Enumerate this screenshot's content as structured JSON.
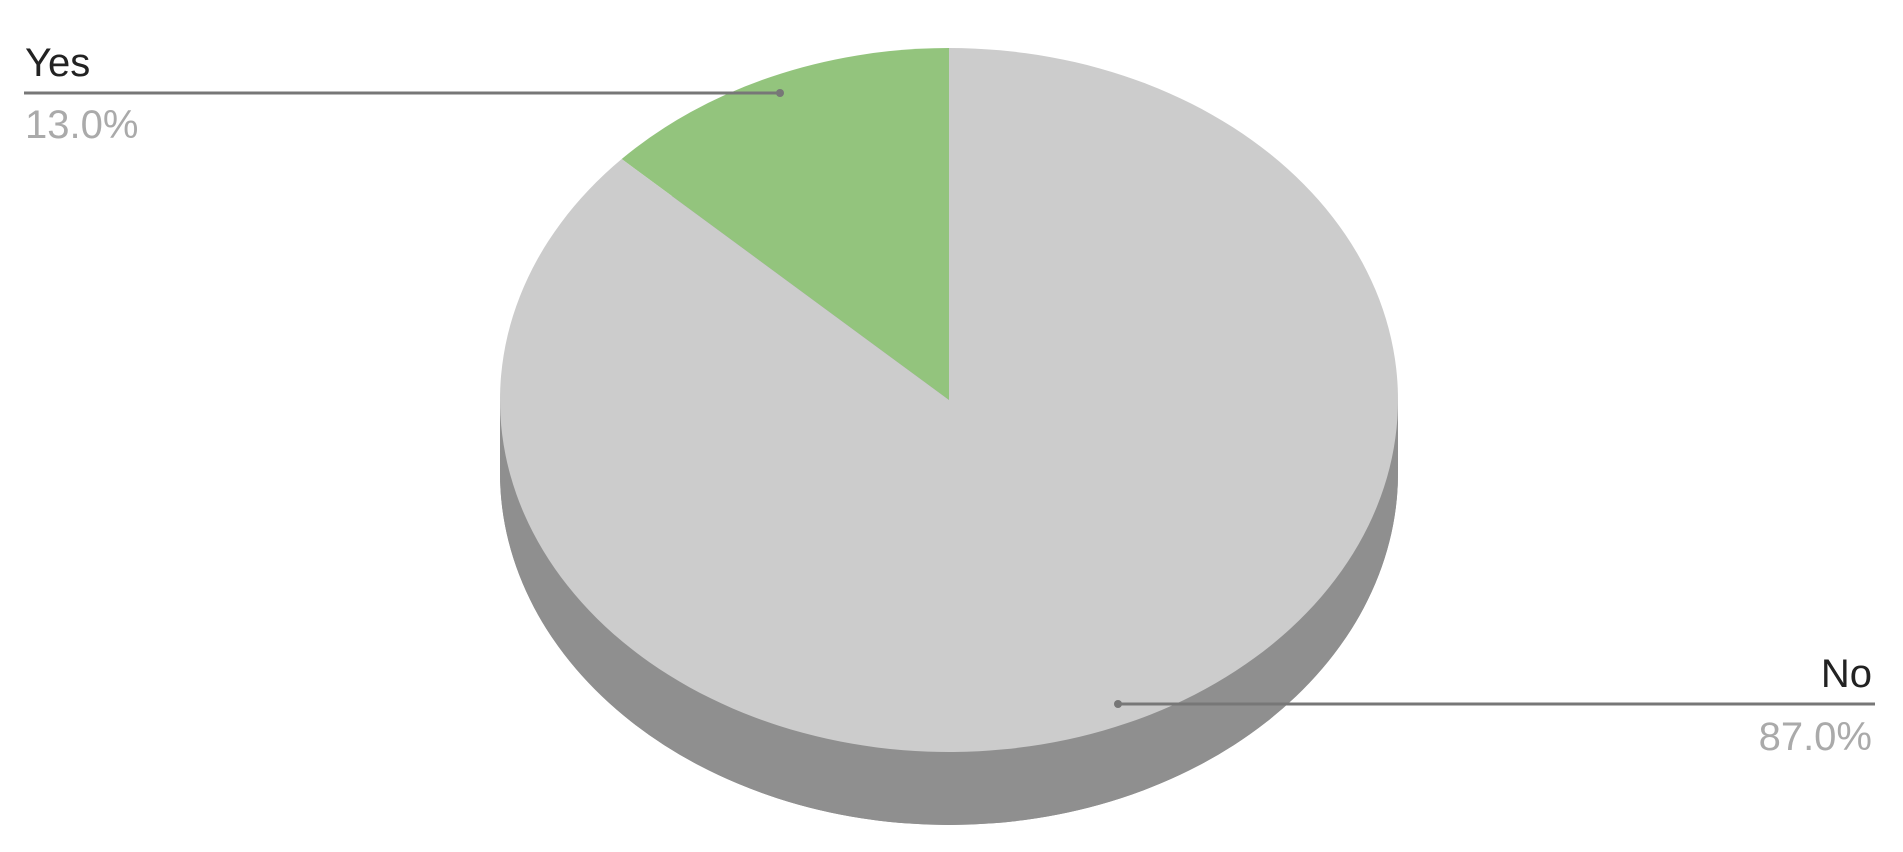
{
  "chart_data": {
    "type": "pie",
    "style": "3d",
    "title": "",
    "slices": [
      {
        "label": "Yes",
        "value": 13.0,
        "display": "13.0%",
        "color": "#93c47d"
      },
      {
        "label": "No",
        "value": 87.0,
        "display": "87.0%",
        "color": "#cccccc"
      }
    ],
    "side_color": "#8f8f8f",
    "leader_color": "#777777",
    "legend": "none"
  }
}
